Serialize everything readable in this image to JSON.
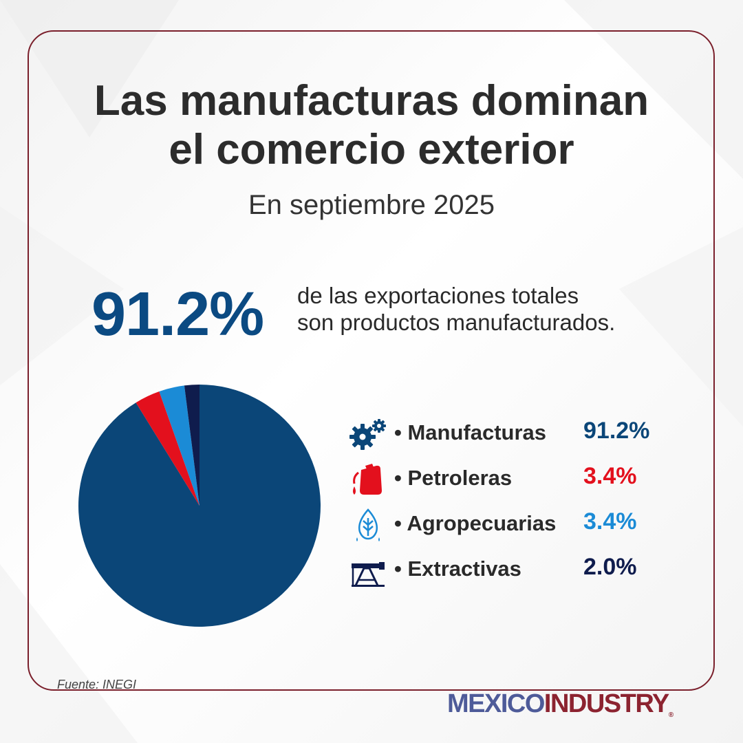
{
  "title_line1": "Las manufacturas dominan",
  "title_line2": "el comercio exterior",
  "subtitle": "En septiembre 2025",
  "highlight": {
    "value": "91.2%",
    "text_line1": "de las exportaciones totales",
    "text_line2": "son productos manufacturados."
  },
  "chart_data": {
    "type": "pie",
    "categories": [
      "Manufacturas",
      "Petroleras",
      "Agropecuarias",
      "Extractivas"
    ],
    "values": [
      91.2,
      3.4,
      3.4,
      2.0
    ],
    "labels": [
      "91.2%",
      "3.4%",
      "3.4%",
      "2.0%"
    ],
    "colors": [
      "#0b4678",
      "#e3101d",
      "#1b8bd6",
      "#0f1c4d"
    ],
    "icons": [
      "gears-icon",
      "fuel-can-icon",
      "leaf-drop-icon",
      "oil-pump-icon"
    ],
    "legend_position": "right"
  },
  "source": "Fuente: INEGI",
  "brand": {
    "part1": "MEXICO",
    "part2": "INDUSTRY",
    "reg": "®"
  }
}
